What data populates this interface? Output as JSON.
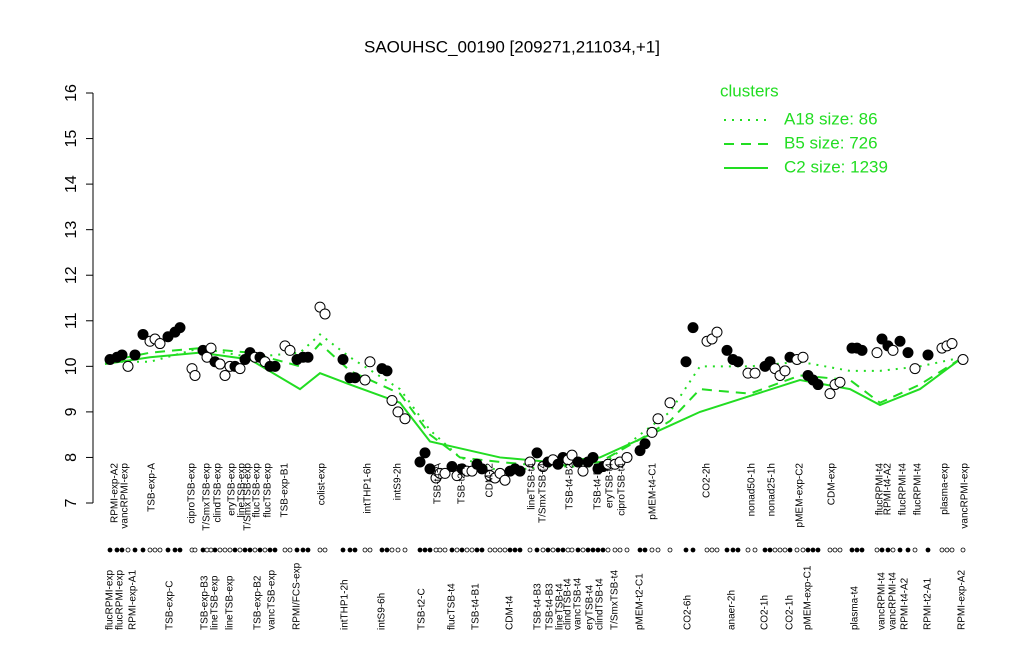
{
  "chart_data": {
    "type": "scatter",
    "title": "SAOUHSC_00190 [209271,211034,+1]",
    "xlim": [
      100,
      970
    ],
    "ylim": [
      7,
      16
    ],
    "yticks": [
      7,
      8,
      9,
      10,
      11,
      12,
      13,
      14,
      15,
      16
    ],
    "legend_title": "clusters",
    "legend_position": "top-right",
    "line_color": "#22dd22",
    "x": [
      105,
      150,
      200,
      250,
      300,
      320,
      350,
      400,
      430,
      460,
      500,
      550,
      600,
      640,
      670,
      700,
      750,
      800,
      850,
      880,
      920,
      963
    ],
    "series": [
      {
        "name": "A18 size: 86",
        "style": "dotted",
        "color": "#22dd22",
        "values": [
          10.1,
          10.1,
          10.4,
          10.2,
          10.3,
          10.7,
          10.2,
          9.5,
          8.6,
          8.0,
          7.7,
          7.8,
          7.8,
          8.5,
          9.0,
          10.0,
          10.0,
          10.1,
          9.9,
          9.9,
          10.0,
          10.2
        ]
      },
      {
        "name": "B5 size: 726",
        "style": "dashed",
        "color": "#22dd22",
        "values": [
          10.1,
          10.3,
          10.4,
          10.3,
          10.0,
          10.5,
          9.9,
          9.4,
          8.5,
          8.0,
          7.9,
          7.8,
          7.9,
          8.4,
          8.8,
          9.5,
          9.4,
          9.8,
          9.7,
          9.2,
          9.6,
          10.2
        ]
      },
      {
        "name": "C2 size: 1239",
        "style": "solid",
        "color": "#22dd22",
        "values": [
          10.05,
          10.2,
          10.3,
          10.15,
          9.5,
          9.85,
          9.6,
          9.2,
          8.35,
          8.2,
          8.0,
          7.9,
          8.0,
          8.4,
          8.7,
          9.0,
          9.35,
          9.7,
          9.5,
          9.15,
          9.5,
          10.2
        ]
      }
    ],
    "points": {
      "x": [
        110,
        117,
        122,
        128,
        135,
        143,
        150,
        155,
        160,
        168,
        175,
        180,
        192,
        195,
        203,
        207,
        211,
        215,
        220,
        225,
        230,
        235,
        240,
        245,
        250,
        255,
        260,
        265,
        270,
        275,
        285,
        290,
        297,
        303,
        308,
        320,
        325,
        343,
        350,
        355,
        365,
        370,
        382,
        387,
        392,
        398,
        405,
        420,
        425,
        430,
        436,
        440,
        445,
        452,
        457,
        462,
        467,
        472,
        477,
        482,
        490,
        495,
        500,
        505,
        510,
        515,
        520,
        530,
        537,
        543,
        548,
        553,
        558,
        563,
        568,
        572,
        578,
        583,
        588,
        593,
        598,
        603,
        608,
        615,
        620,
        627,
        640,
        645,
        652,
        658,
        670,
        686,
        693,
        707,
        712,
        717,
        727,
        733,
        738,
        748,
        755,
        765,
        770,
        775,
        780,
        785,
        790,
        797,
        803,
        808,
        813,
        818,
        830,
        835,
        840,
        852,
        857,
        862,
        877,
        882,
        888,
        893,
        900,
        908,
        915,
        928,
        942,
        947,
        952,
        963
      ],
      "y": [
        10.15,
        10.2,
        10.25,
        10.0,
        10.25,
        10.7,
        10.55,
        10.6,
        10.5,
        10.65,
        10.75,
        10.85,
        9.95,
        9.8,
        10.35,
        10.2,
        10.4,
        10.1,
        10.05,
        9.8,
        10.0,
        10.0,
        9.95,
        10.15,
        10.3,
        10.2,
        10.2,
        10.1,
        10.0,
        10.0,
        10.45,
        10.35,
        10.15,
        10.2,
        10.2,
        11.3,
        11.15,
        10.15,
        9.75,
        9.75,
        9.7,
        10.1,
        9.95,
        9.9,
        9.25,
        9.0,
        8.85,
        7.9,
        8.1,
        7.75,
        7.55,
        7.65,
        7.65,
        7.8,
        7.6,
        7.75,
        7.7,
        7.7,
        7.85,
        7.75,
        7.6,
        7.55,
        7.65,
        7.5,
        7.7,
        7.75,
        7.7,
        7.9,
        8.1,
        7.8,
        7.9,
        7.95,
        7.85,
        8.0,
        7.95,
        8.05,
        7.9,
        7.7,
        7.9,
        8.0,
        7.75,
        7.8,
        7.85,
        7.85,
        7.9,
        8.0,
        8.15,
        8.3,
        8.55,
        8.85,
        9.2,
        10.1,
        10.85,
        10.55,
        10.6,
        10.75,
        10.35,
        10.15,
        10.1,
        9.85,
        9.85,
        10.0,
        10.1,
        9.95,
        9.8,
        9.9,
        10.2,
        10.15,
        10.2,
        9.8,
        9.7,
        9.6,
        9.4,
        9.6,
        9.65,
        10.4,
        10.4,
        10.35,
        10.3,
        10.6,
        10.45,
        10.35,
        10.55,
        10.3,
        9.95,
        10.25,
        10.4,
        10.45,
        10.5,
        10.15
      ],
      "filled": [
        1,
        1,
        1,
        0,
        1,
        1,
        0,
        0,
        0,
        1,
        1,
        1,
        0,
        0,
        1,
        0,
        0,
        1,
        0,
        0,
        0,
        1,
        0,
        1,
        1,
        0,
        1,
        0,
        1,
        1,
        0,
        0,
        1,
        1,
        1,
        0,
        0,
        1,
        1,
        1,
        0,
        0,
        1,
        1,
        0,
        0,
        0,
        1,
        1,
        1,
        0,
        0,
        0,
        1,
        0,
        1,
        0,
        0,
        1,
        1,
        0,
        0,
        0,
        0,
        1,
        1,
        1,
        0,
        1,
        0,
        1,
        0,
        1,
        1,
        0,
        0,
        1,
        0,
        1,
        1,
        1,
        1,
        0,
        0,
        0,
        0,
        1,
        1,
        0,
        0,
        0,
        1,
        1,
        0,
        0,
        0,
        1,
        1,
        1,
        0,
        0,
        1,
        1,
        0,
        0,
        0,
        1,
        0,
        0,
        1,
        1,
        1,
        0,
        0,
        0,
        1,
        1,
        1,
        0,
        1,
        1,
        0,
        1,
        1,
        0,
        1,
        0,
        0,
        0,
        0
      ]
    },
    "top_labels": {
      "x": [
        115,
        125,
        152,
        192,
        207,
        218,
        232,
        242,
        248,
        257,
        268,
        285,
        322,
        368,
        398,
        438,
        462,
        490,
        532,
        543,
        570,
        598,
        610,
        622,
        653,
        707,
        752,
        772,
        800,
        832,
        880,
        888,
        903,
        918,
        945,
        965
      ],
      "labels": [
        "RPMI-exp-A2",
        "vancRPMI-exp",
        "TSB-exp-A",
        "ciproTSB-exp",
        "T/SmxTSB-exp",
        "clindTSB-exp",
        "eryTSB-exp",
        "lineTSB-exp",
        "T/SmxTSB-exp",
        "flucTSB-exp",
        "flucTSB-exp",
        "TSB-exp-B1",
        "colist-exp",
        "intTHP1-6h",
        "intS9-2h",
        "TSB-t4-A",
        "TSB-t2-B",
        "CDM-t2",
        "lineTSB-t4",
        "T/SmxTSB-t4",
        "TSB-t4-B2",
        "TSB-t4-B3",
        "eryTSB-t4",
        "ciproTSB-t4",
        "pMEM-t4-C1",
        "CO2-2h",
        "nonad50-1h",
        "nonad25-1h",
        "pMEM-exp-C2",
        "CDM-exp",
        "flucRPMI-t4",
        "RPMI-t4-A2",
        "flucRPMI-t4",
        "flucRPMI-t4",
        "plasma-exp",
        "vancRPMI-exp"
      ]
    },
    "bottom_labels": {
      "x": [
        110,
        120,
        133,
        170,
        205,
        215,
        230,
        258,
        272,
        297,
        345,
        382,
        422,
        452,
        476,
        510,
        538,
        550,
        560,
        568,
        578,
        590,
        600,
        615,
        640,
        688,
        732,
        765,
        790,
        808,
        855,
        882,
        893,
        905,
        928,
        962
      ],
      "labels": [
        "flucRPMI-exp",
        "flucRPMI-exp",
        "RPMI-exp-A1",
        "TSB-exp-C",
        "TSB-exp-B3",
        "lineTSB-exp",
        "lineTSB-exp",
        "TSB-exp-B2",
        "vancTSB-exp",
        "RPMI/FCS-exp",
        "intTHP1-2h",
        "intS9-6h",
        "TSB-t2-C",
        "flucTSB-t4",
        "TSB-t4-B1",
        "CDM-t4",
        "TSB-t4-B3",
        "TSB-t4-B3",
        "lineTSB-t4",
        "clindTSB-t4",
        "vancTSB-t4",
        "eryTSB-t4",
        "clindTSB-t4",
        "T/SmxTSB-t4",
        "pMEM-t2-C1",
        "CO2-6h",
        "anaer-2h",
        "CO2-1h",
        "CO2-1h",
        "pMEM-exp-C1",
        "plasma-t4",
        "vancRPMI-t4",
        "vancRPMI-t4",
        "RPMI-t4-A2",
        "RPMI-t2-A1",
        "RPMI-exp-A2"
      ]
    }
  }
}
